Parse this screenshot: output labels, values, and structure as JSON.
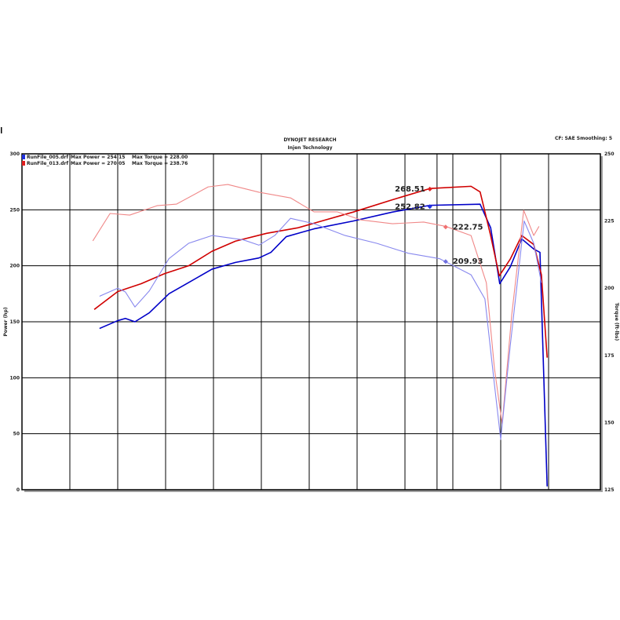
{
  "chart_data": {
    "type": "line",
    "title": "DYNOJET RESEARCH",
    "subtitle": "Injen Technology",
    "settings_text": "CF: SAE  Smoothing: 5",
    "ylabel": "Power (hp)",
    "y2label": "Torque (ft-lbs)",
    "ylim": [
      0,
      300
    ],
    "y2lim": [
      125,
      250
    ],
    "yticks": [
      "0",
      "50",
      "100",
      "150",
      "200",
      "250",
      "300"
    ],
    "y2ticks": [
      "125",
      "150",
      "175",
      "200",
      "225",
      "250"
    ],
    "grid": true,
    "legend_placement": "top-left",
    "legend": [
      {
        "file": "RunFile_005.drf",
        "max_power": "Max Power = 254.15",
        "max_torque": "Max Torque = 228.00",
        "color": "#2030e0"
      },
      {
        "file": "RunFile_013.drf",
        "max_power": "Max Power = 270.05",
        "max_torque": "Max Torque = 238.76",
        "color": "#e02020"
      }
    ],
    "series": [
      {
        "axis": "power",
        "color": "#0000c8",
        "points": [
          [
            1.62,
            144
          ],
          [
            2.0,
            151
          ],
          [
            2.16,
            153
          ],
          [
            2.36,
            150
          ],
          [
            2.66,
            158
          ],
          [
            3.07,
            175
          ],
          [
            3.48,
            185
          ],
          [
            3.97,
            197
          ],
          [
            4.46,
            203
          ],
          [
            4.95,
            207
          ],
          [
            5.2,
            212
          ],
          [
            5.52,
            226
          ],
          [
            6.1,
            233
          ],
          [
            6.92,
            240
          ],
          [
            7.74,
            248
          ],
          [
            8.52,
            254
          ],
          [
            9.57,
            255
          ],
          [
            9.79,
            234
          ],
          [
            9.98,
            184
          ],
          [
            10.2,
            199
          ],
          [
            10.44,
            224
          ],
          [
            10.69,
            215
          ],
          [
            10.82,
            212
          ],
          [
            10.97,
            3
          ]
        ]
      },
      {
        "axis": "power",
        "color": "#d00000",
        "points": [
          [
            1.51,
            161
          ],
          [
            2.0,
            177
          ],
          [
            2.49,
            184
          ],
          [
            2.98,
            193
          ],
          [
            3.48,
            200
          ],
          [
            3.97,
            213
          ],
          [
            4.46,
            222
          ],
          [
            5.11,
            229
          ],
          [
            5.77,
            234
          ],
          [
            6.26,
            240
          ],
          [
            6.92,
            248
          ],
          [
            7.74,
            259
          ],
          [
            8.52,
            269
          ],
          [
            9.38,
            271
          ],
          [
            9.57,
            266
          ],
          [
            9.79,
            227
          ],
          [
            9.97,
            191
          ],
          [
            10.2,
            206
          ],
          [
            10.44,
            227
          ],
          [
            10.69,
            219
          ],
          [
            10.85,
            192
          ],
          [
            10.97,
            118
          ]
        ]
      },
      {
        "axis": "torque",
        "color": "#f08888",
        "points": [
          [
            1.48,
            217.6
          ],
          [
            1.84,
            227.8
          ],
          [
            2.25,
            227.2
          ],
          [
            2.82,
            230.7
          ],
          [
            3.23,
            231.3
          ],
          [
            3.89,
            237.7
          ],
          [
            4.3,
            238.6
          ],
          [
            4.95,
            235.7
          ],
          [
            5.61,
            233.6
          ],
          [
            6.1,
            228.4
          ],
          [
            6.59,
            228.4
          ],
          [
            7.08,
            225.4
          ],
          [
            7.74,
            224
          ],
          [
            8.39,
            224.6
          ],
          [
            8.85,
            223
          ],
          [
            9.38,
            219.6
          ],
          [
            9.7,
            202
          ],
          [
            9.87,
            170
          ],
          [
            10.03,
            149.5
          ],
          [
            10.23,
            190
          ],
          [
            10.48,
            229
          ],
          [
            10.69,
            219.6
          ],
          [
            10.8,
            223
          ]
        ]
      },
      {
        "axis": "torque",
        "color": "#8888ee",
        "points": [
          [
            1.62,
            197
          ],
          [
            2.0,
            200
          ],
          [
            2.16,
            198.6
          ],
          [
            2.36,
            193
          ],
          [
            2.66,
            199
          ],
          [
            3.07,
            211
          ],
          [
            3.48,
            216.7
          ],
          [
            3.97,
            219.6
          ],
          [
            4.62,
            218
          ],
          [
            4.95,
            216
          ],
          [
            5.28,
            219.6
          ],
          [
            5.61,
            226
          ],
          [
            6.1,
            224
          ],
          [
            6.75,
            219.6
          ],
          [
            7.41,
            216.7
          ],
          [
            8.07,
            213
          ],
          [
            8.72,
            211
          ],
          [
            9.38,
            205
          ],
          [
            9.67,
            196
          ],
          [
            9.87,
            164
          ],
          [
            10.0,
            143.7
          ],
          [
            10.2,
            178.7
          ],
          [
            10.49,
            225
          ],
          [
            10.69,
            216.7
          ],
          [
            10.85,
            202
          ]
        ]
      }
    ],
    "annotations": [
      {
        "text": "268.51",
        "axis": "power",
        "x": 8.52,
        "y": 268.51,
        "color": "#e02020"
      },
      {
        "text": "252.82",
        "axis": "power",
        "x": 8.52,
        "y": 252.82,
        "color": "#2030e0"
      },
      {
        "text": "222.75",
        "axis": "torque",
        "x": 8.85,
        "y": 222.75,
        "color": "#f07070"
      },
      {
        "text": "209.93",
        "axis": "torque",
        "x": 8.85,
        "y": 209.93,
        "color": "#7070e0"
      }
    ],
    "vertical_grid": [
      0,
      1,
      2,
      3,
      4,
      5,
      6,
      7,
      8,
      8.67,
      9,
      10,
      11
    ]
  }
}
